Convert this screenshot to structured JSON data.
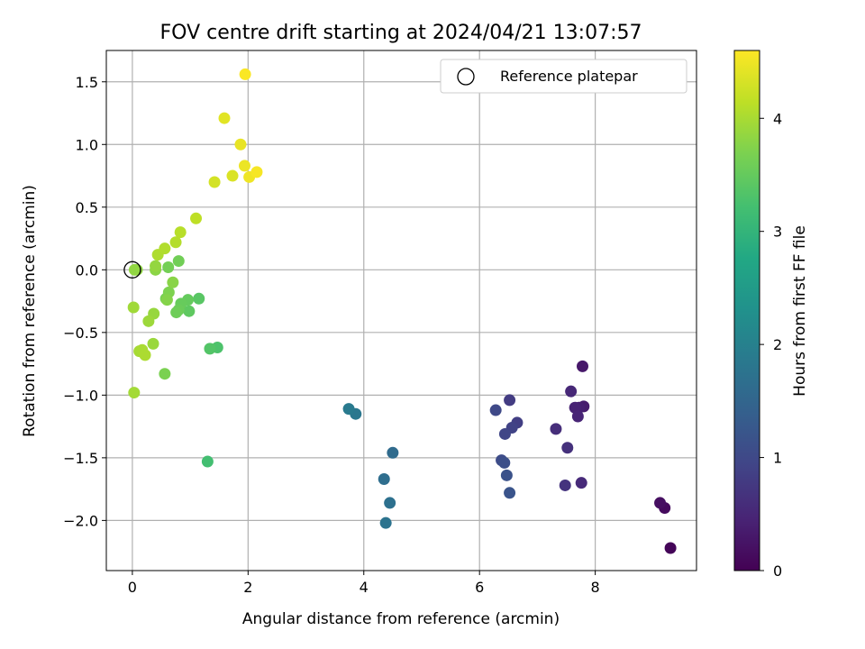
{
  "chart_data": {
    "type": "scatter",
    "title": "FOV centre drift starting at 2024/04/21 13:07:57",
    "xlabel": "Angular distance from reference (arcmin)",
    "ylabel": "Rotation from reference (arcmin)",
    "xlim": [
      -0.45,
      9.75
    ],
    "ylim": [
      -2.4,
      1.75
    ],
    "xticks": [
      0,
      2,
      4,
      6,
      8
    ],
    "xtick_labels": [
      "0",
      "2",
      "4",
      "6",
      "8"
    ],
    "yticks": [
      1.5,
      1.0,
      0.5,
      0.0,
      -0.5,
      -1.0,
      -1.5,
      -2.0
    ],
    "ytick_labels": [
      "1.5",
      "1.0",
      "0.5",
      "0.0",
      "−0.5",
      "−1.0",
      "−1.5",
      "−2.0"
    ],
    "grid": true,
    "legend": {
      "label": "Reference platepar",
      "placement": "top-right"
    },
    "colorbar": {
      "label": "Hours from first FF file",
      "colormap": "viridis",
      "range": [
        0,
        4.6
      ],
      "ticks": [
        0,
        1,
        2,
        3,
        4
      ],
      "tick_labels": [
        "0",
        "1",
        "2",
        "3",
        "4"
      ]
    },
    "reference_point": {
      "x": 0,
      "y": 0
    },
    "points": [
      {
        "x": 9.3,
        "y": -2.22,
        "c": 0.05
      },
      {
        "x": 9.2,
        "y": -1.9,
        "c": 0.12
      },
      {
        "x": 9.12,
        "y": -1.86,
        "c": 0.18
      },
      {
        "x": 7.78,
        "y": -0.77,
        "c": 0.3
      },
      {
        "x": 7.8,
        "y": -1.09,
        "c": 0.35
      },
      {
        "x": 7.72,
        "y": -1.1,
        "c": 0.4
      },
      {
        "x": 7.65,
        "y": -1.1,
        "c": 0.45
      },
      {
        "x": 7.7,
        "y": -1.17,
        "c": 0.48
      },
      {
        "x": 7.58,
        "y": -0.97,
        "c": 0.52
      },
      {
        "x": 7.76,
        "y": -1.7,
        "c": 0.55
      },
      {
        "x": 7.32,
        "y": -1.27,
        "c": 0.6
      },
      {
        "x": 7.52,
        "y": -1.42,
        "c": 0.65
      },
      {
        "x": 7.48,
        "y": -1.72,
        "c": 0.68
      },
      {
        "x": 6.52,
        "y": -1.04,
        "c": 0.8
      },
      {
        "x": 6.65,
        "y": -1.22,
        "c": 0.85
      },
      {
        "x": 6.56,
        "y": -1.26,
        "c": 0.9
      },
      {
        "x": 6.44,
        "y": -1.31,
        "c": 0.95
      },
      {
        "x": 6.28,
        "y": -1.12,
        "c": 1.0
      },
      {
        "x": 6.38,
        "y": -1.52,
        "c": 1.05
      },
      {
        "x": 6.43,
        "y": -1.54,
        "c": 1.1
      },
      {
        "x": 6.47,
        "y": -1.64,
        "c": 1.15
      },
      {
        "x": 6.52,
        "y": -1.78,
        "c": 1.2
      },
      {
        "x": 4.5,
        "y": -1.46,
        "c": 1.6
      },
      {
        "x": 4.35,
        "y": -1.67,
        "c": 1.65
      },
      {
        "x": 4.45,
        "y": -1.86,
        "c": 1.7
      },
      {
        "x": 4.38,
        "y": -2.02,
        "c": 1.75
      },
      {
        "x": 3.86,
        "y": -1.15,
        "c": 1.82
      },
      {
        "x": 3.74,
        "y": -1.11,
        "c": 1.88
      },
      {
        "x": 1.3,
        "y": -1.53,
        "c": 3.2
      },
      {
        "x": 1.47,
        "y": -0.62,
        "c": 3.3
      },
      {
        "x": 1.34,
        "y": -0.63,
        "c": 3.35
      },
      {
        "x": 1.15,
        "y": -0.23,
        "c": 3.4
      },
      {
        "x": 0.98,
        "y": -0.33,
        "c": 3.45
      },
      {
        "x": 0.96,
        "y": -0.24,
        "c": 3.5
      },
      {
        "x": 0.84,
        "y": -0.27,
        "c": 3.52
      },
      {
        "x": 0.8,
        "y": -0.32,
        "c": 3.55
      },
      {
        "x": 0.76,
        "y": -0.34,
        "c": 3.58
      },
      {
        "x": 0.8,
        "y": 0.07,
        "c": 3.6
      },
      {
        "x": 0.62,
        "y": 0.02,
        "c": 3.62
      },
      {
        "x": 0.58,
        "y": -0.23,
        "c": 3.65
      },
      {
        "x": 0.56,
        "y": -0.83,
        "c": 3.68
      },
      {
        "x": 0.63,
        "y": -0.18,
        "c": 3.7
      },
      {
        "x": 0.6,
        "y": -0.24,
        "c": 3.75
      },
      {
        "x": 0.7,
        "y": -0.1,
        "c": 3.78
      },
      {
        "x": 0.4,
        "y": 0.0,
        "c": 3.8
      },
      {
        "x": 0.08,
        "y": 0.0,
        "c": 3.82
      },
      {
        "x": 0.04,
        "y": 0.0,
        "c": 3.84
      },
      {
        "x": 0.4,
        "y": 0.03,
        "c": 3.86
      },
      {
        "x": 0.37,
        "y": -0.35,
        "c": 3.88
      },
      {
        "x": 0.36,
        "y": -0.59,
        "c": 3.9
      },
      {
        "x": 0.28,
        "y": -0.41,
        "c": 3.92
      },
      {
        "x": 0.02,
        "y": -0.3,
        "c": 3.94
      },
      {
        "x": 0.03,
        "y": -0.98,
        "c": 3.96
      },
      {
        "x": 0.12,
        "y": -0.65,
        "c": 3.98
      },
      {
        "x": 0.17,
        "y": -0.64,
        "c": 4.0
      },
      {
        "x": 0.22,
        "y": -0.68,
        "c": 4.02
      },
      {
        "x": 0.44,
        "y": 0.12,
        "c": 4.04
      },
      {
        "x": 0.56,
        "y": 0.17,
        "c": 4.06
      },
      {
        "x": 0.75,
        "y": 0.22,
        "c": 4.08
      },
      {
        "x": 0.83,
        "y": 0.3,
        "c": 4.1
      },
      {
        "x": 1.1,
        "y": 0.41,
        "c": 4.15
      },
      {
        "x": 1.42,
        "y": 0.7,
        "c": 4.3
      },
      {
        "x": 1.73,
        "y": 0.75,
        "c": 4.35
      },
      {
        "x": 1.59,
        "y": 1.21,
        "c": 4.4
      },
      {
        "x": 1.87,
        "y": 1.0,
        "c": 4.45
      },
      {
        "x": 1.94,
        "y": 0.83,
        "c": 4.48
      },
      {
        "x": 2.02,
        "y": 0.74,
        "c": 4.5
      },
      {
        "x": 2.15,
        "y": 0.78,
        "c": 4.55
      },
      {
        "x": 1.95,
        "y": 1.56,
        "c": 4.58
      }
    ]
  }
}
